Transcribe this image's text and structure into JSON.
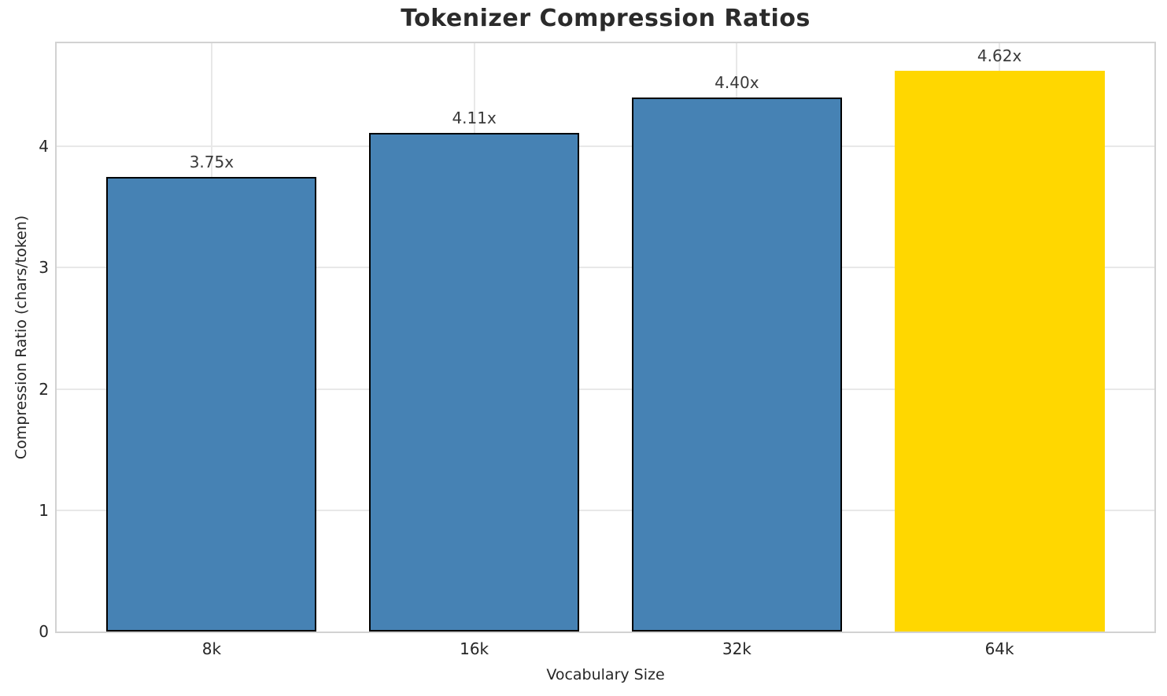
{
  "chart_data": {
    "type": "bar",
    "title": "Tokenizer Compression Ratios",
    "xlabel": "Vocabulary Size",
    "ylabel": "Compression Ratio (chars/token)",
    "categories": [
      "8k",
      "16k",
      "32k",
      "64k"
    ],
    "values": [
      3.75,
      4.11,
      4.4,
      4.62
    ],
    "bar_labels": [
      "3.75x",
      "4.11x",
      "4.40x",
      "4.62x"
    ],
    "yticks": [
      0,
      1,
      2,
      3,
      4
    ],
    "ylim": [
      0,
      4.85
    ],
    "grid": "both",
    "legend": "none",
    "bar_colors": [
      "#4682B4",
      "#4682B4",
      "#4682B4",
      "#FFD700"
    ],
    "bar_edge_colors": [
      "#000000",
      "#000000",
      "#000000",
      "none"
    ],
    "highlight_index": 3
  },
  "colors": {
    "bar_blue": "#4682B4",
    "bar_gold": "#FFD700",
    "bar_edge": "#000000",
    "grid": "#e8e8e8",
    "spine": "#d2d2d2",
    "title_text": "#2b2b2b",
    "tick_text": "#262626",
    "value_label_text": "#3a3a3a",
    "background": "#ffffff"
  }
}
